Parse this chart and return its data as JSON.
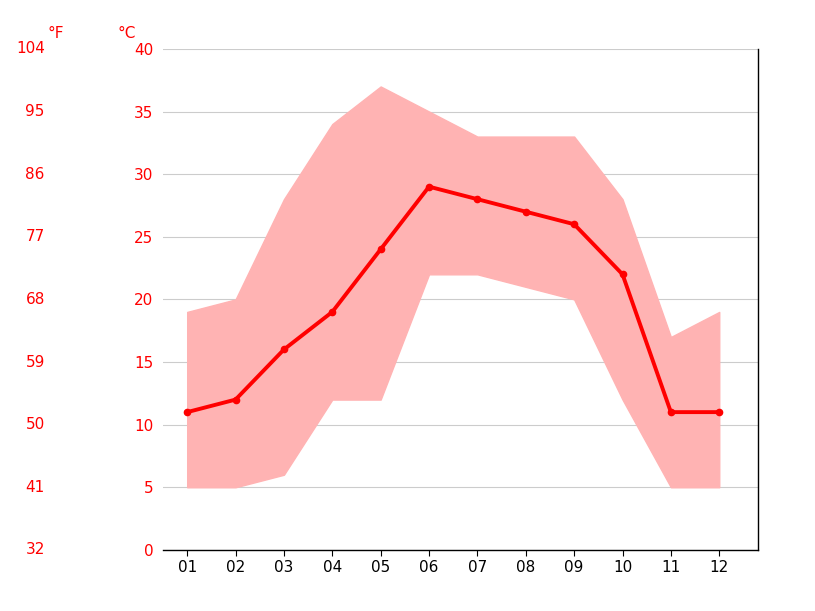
{
  "months": [
    1,
    2,
    3,
    4,
    5,
    6,
    7,
    8,
    9,
    10,
    11,
    12
  ],
  "month_labels": [
    "01",
    "02",
    "03",
    "04",
    "05",
    "06",
    "07",
    "08",
    "09",
    "10",
    "11",
    "12"
  ],
  "avg_temp_c": [
    11,
    12,
    16,
    19,
    24,
    29,
    28,
    27,
    26,
    22,
    11,
    11
  ],
  "max_temp_c": [
    19,
    20,
    28,
    34,
    37,
    35,
    33,
    33,
    33,
    28,
    17,
    19
  ],
  "min_temp_c": [
    5,
    5,
    6,
    12,
    12,
    22,
    22,
    21,
    20,
    12,
    5,
    5
  ],
  "ylim_c": [
    0,
    40
  ],
  "yticks_c": [
    0,
    5,
    10,
    15,
    20,
    25,
    30,
    35,
    40
  ],
  "ytick_labels_c": [
    "0",
    "5",
    "10",
    "15",
    "20",
    "25",
    "30",
    "35",
    "40"
  ],
  "ytick_labels_f": [
    "32",
    "41",
    "50",
    "59",
    "68",
    "77",
    "86",
    "95",
    "104"
  ],
  "line_color": "#ff0000",
  "band_color": "#ffb3b3",
  "axis_label_f": "°F",
  "axis_label_c": "°C",
  "background_color": "#ffffff",
  "grid_color": "#cccccc",
  "tick_label_color": "#ff0000",
  "line_width": 2.8,
  "marker_size": 4.5,
  "figsize": [
    8.15,
    6.11
  ],
  "dpi": 100
}
